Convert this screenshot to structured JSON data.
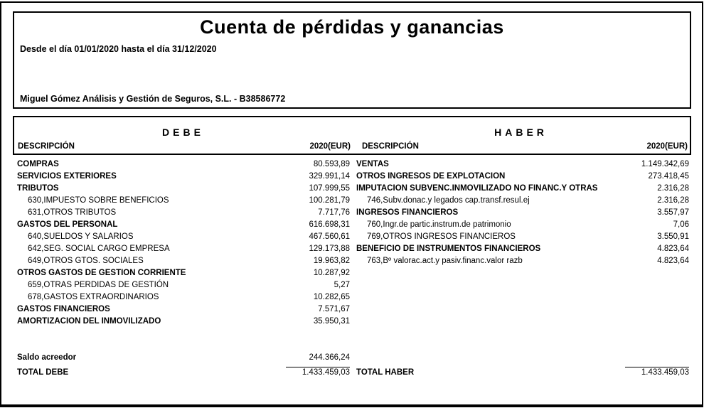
{
  "report": {
    "title": "Cuenta de pérdidas y ganancias",
    "period": "Desde el día 01/01/2020 hasta el día 31/12/2020",
    "company": "Miguel Gómez Análisis y Gestión de Seguros, S.L. - B38586772"
  },
  "debe": {
    "section_title": "DEBE",
    "col_description": "DESCRIPCIÓN",
    "col_amount": "2020(EUR)",
    "rows": [
      {
        "label": "COMPRAS",
        "value": "80.593,89"
      },
      {
        "label": "SERVICIOS EXTERIORES",
        "value": "329.991,14"
      },
      {
        "label": "TRIBUTOS",
        "value": "107.999,55"
      },
      {
        "label": "630,IMPUESTO SOBRE BENEFICIOS",
        "value": "100.281,79"
      },
      {
        "label": "631,OTROS TRIBUTOS",
        "value": "7.717,76"
      },
      {
        "label": "GASTOS DEL PERSONAL",
        "value": "616.698,31"
      },
      {
        "label": "640,SUELDOS Y SALARIOS",
        "value": "467.560,61"
      },
      {
        "label": "642,SEG. SOCIAL CARGO EMPRESA",
        "value": "129.173,88"
      },
      {
        "label": "649,OTROS GTOS. SOCIALES",
        "value": "19.963,82"
      },
      {
        "label": "OTROS GASTOS DE GESTION CORRIENTE",
        "value": "10.287,92"
      },
      {
        "label": "659,OTRAS PERDIDAS DE GESTIÓN",
        "value": "5,27"
      },
      {
        "label": "678,GASTOS EXTRAORDINARIOS",
        "value": "10.282,65"
      },
      {
        "label": "GASTOS FINANCIEROS",
        "value": "7.571,67"
      },
      {
        "label": "AMORTIZACION DEL INMOVILIZADO",
        "value": "35.950,31"
      }
    ],
    "saldo": {
      "label": "Saldo acreedor",
      "value": "244.366,24"
    },
    "total": {
      "label": "TOTAL DEBE",
      "value": "1.433.459,03"
    }
  },
  "haber": {
    "section_title": "HABER",
    "col_description": "DESCRIPCIÓN",
    "col_amount": "2020(EUR)",
    "rows": [
      {
        "label": "VENTAS",
        "value": "1.149.342,69"
      },
      {
        "label": "OTROS INGRESOS DE EXPLOTACION",
        "value": "273.418,45"
      },
      {
        "label": "IMPUTACION SUBVENC.INMOVILIZADO NO FINANC.Y OTRAS",
        "value": "2.316,28"
      },
      {
        "label": "746,Subv.donac.y legados cap.transf.resul.ej",
        "value": "2.316,28"
      },
      {
        "label": "INGRESOS FINANCIEROS",
        "value": "3.557,97"
      },
      {
        "label": "760,Ingr.de partic.instrum.de patrimonio",
        "value": "7,06"
      },
      {
        "label": "769,OTROS INGRESOS FINANCIEROS",
        "value": "3.550,91"
      },
      {
        "label": "BENEFICIO DE INSTRUMENTOS FINANCIEROS",
        "value": "4.823,64"
      },
      {
        "label": "763,Bº valorac.act.y pasiv.financ.valor razb",
        "value": "4.823,64"
      }
    ],
    "total": {
      "label": "TOTAL HABER",
      "value": "1.433.459,03"
    }
  }
}
